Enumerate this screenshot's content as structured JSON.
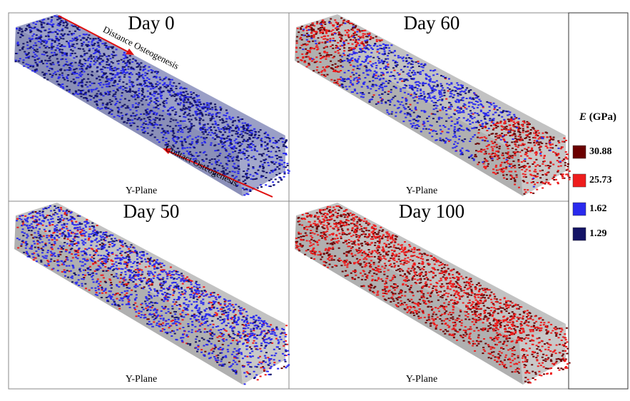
{
  "panels": [
    {
      "title": "Day 0",
      "plane": "Y-Plane",
      "annotations": [
        "Distance Osteogenesis",
        "Contact Osteogenesis"
      ]
    },
    {
      "title": "Day 60",
      "plane": "Y-Plane"
    },
    {
      "title": "Day 50",
      "plane": "Y-Plane"
    },
    {
      "title": "Day 100",
      "plane": "Y-Plane"
    }
  ],
  "legend": {
    "symbol": "E",
    "unit": "(GPa)",
    "entries": [
      {
        "value": 30.88,
        "color": "#6b0000"
      },
      {
        "value": 25.73,
        "color": "#ee1c1c"
      },
      {
        "value": 1.62,
        "color": "#2a2aee"
      },
      {
        "value": 1.29,
        "color": "#141466"
      }
    ]
  }
}
